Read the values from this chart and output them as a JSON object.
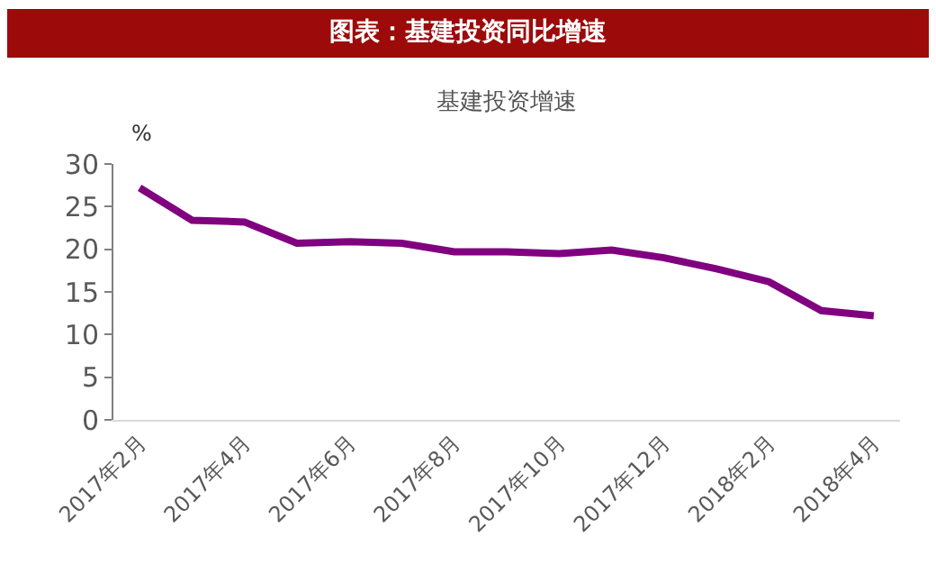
{
  "chart_data": {
    "type": "line",
    "title": "图表：基建投资同比增速",
    "subtitle": "基建投资增速",
    "ylabel": "%",
    "categories": [
      "2017年2月",
      null,
      "2017年4月",
      null,
      "2017年6月",
      null,
      "2017年8月",
      null,
      "2017年10月",
      null,
      "2017年12月",
      null,
      "2018年2月",
      null,
      "2018年4月"
    ],
    "series": [
      {
        "color": "#800080",
        "values": [
          27.2,
          23.4,
          23.2,
          20.7,
          20.9,
          20.7,
          19.7,
          19.7,
          19.5,
          19.9,
          19.0,
          17.7,
          16.2,
          12.8,
          12.2
        ]
      }
    ],
    "ylim": [
      0,
      30
    ],
    "yticks": [
      0,
      5,
      10,
      15,
      20,
      25,
      30
    ],
    "grid": false,
    "marker": "none",
    "line_style": "solid"
  }
}
